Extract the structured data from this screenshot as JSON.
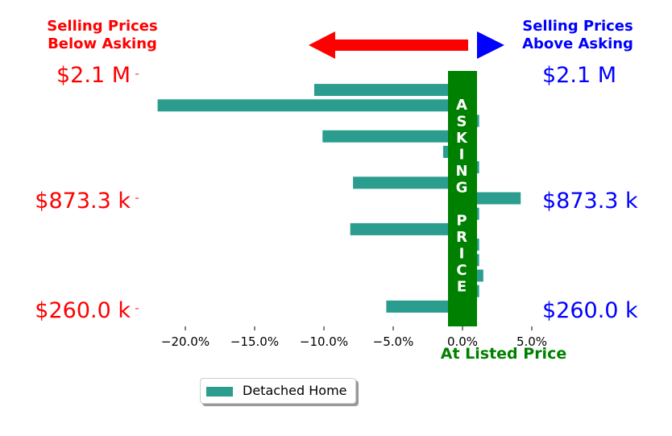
{
  "header": {
    "left_line1": "Selling Prices",
    "left_line2": "Below Asking",
    "right_line1": "Selling Prices",
    "right_line2": "Above Asking",
    "left_color": "#ff0000",
    "right_color": "#0000ff"
  },
  "asking_label": [
    "A",
    "S",
    "K",
    "I",
    "N",
    "G",
    "",
    "P",
    "R",
    "I",
    "C",
    "E"
  ],
  "asking_color": "#008000",
  "at_listed_price": "At Listed Price",
  "price_labels": {
    "left": [
      "$2.1 M",
      "$873.3 k",
      "$260.0 k"
    ],
    "right": [
      "$2.1 M",
      "$873.3 k",
      "$260.0 k"
    ]
  },
  "legend": {
    "label": "Detached Home"
  },
  "chart_data": {
    "type": "bar",
    "orientation": "horizontal",
    "series": [
      {
        "name": "Detached Home",
        "color": "#2a9d8f",
        "values": [
          -10.7,
          -22.0,
          1.2,
          -10.1,
          -1.4,
          1.2,
          -7.9,
          4.2,
          1.2,
          -8.1,
          1.2,
          1.2,
          1.5,
          1.2,
          -5.5
        ]
      }
    ],
    "x_tick_labels": [
      "−20.0%",
      "−15.0%",
      "−10.0%",
      "−5.0%",
      "0.0%",
      "5.0%"
    ],
    "x_ticks": [
      -20,
      -15,
      -10,
      -5,
      0,
      5
    ],
    "xlim": [
      -23,
      5.5
    ],
    "grid": false
  }
}
